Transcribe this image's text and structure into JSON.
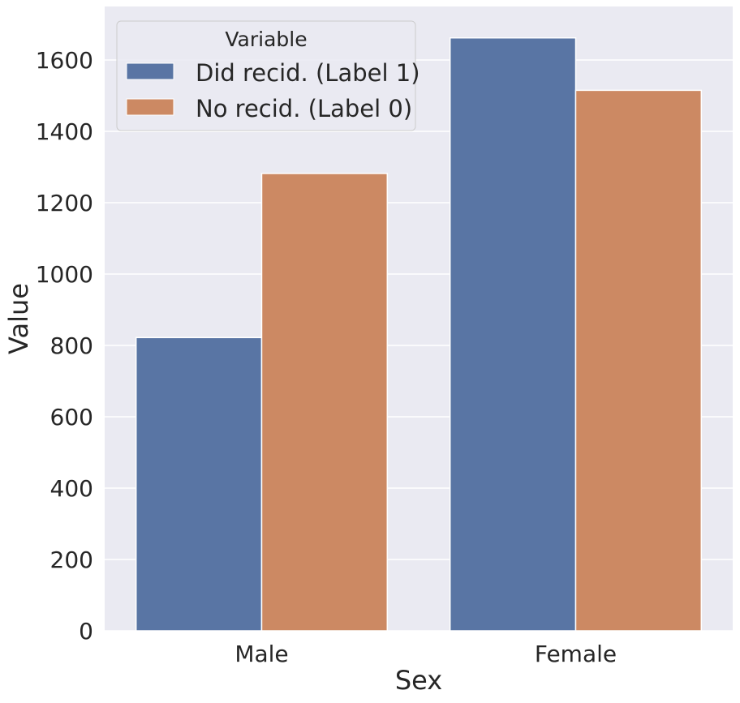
{
  "chart_data": {
    "type": "bar",
    "xlabel": "Sex",
    "ylabel": "Value",
    "categories": [
      "Male",
      "Female"
    ],
    "series": [
      {
        "name": "Did recid. (Label 1)",
        "color": "#5975a4",
        "values": [
          822,
          1662
        ]
      },
      {
        "name": "No recid. (Label 0)",
        "color": "#cc8963",
        "values": [
          1282,
          1515
        ]
      }
    ],
    "ylim": [
      0,
      1750
    ],
    "yticks": [
      0,
      200,
      400,
      600,
      800,
      1000,
      1200,
      1400,
      1600
    ],
    "grid": true,
    "background_color": "#eaeaf2",
    "legend": {
      "title": "Variable",
      "position": "top-left"
    }
  }
}
